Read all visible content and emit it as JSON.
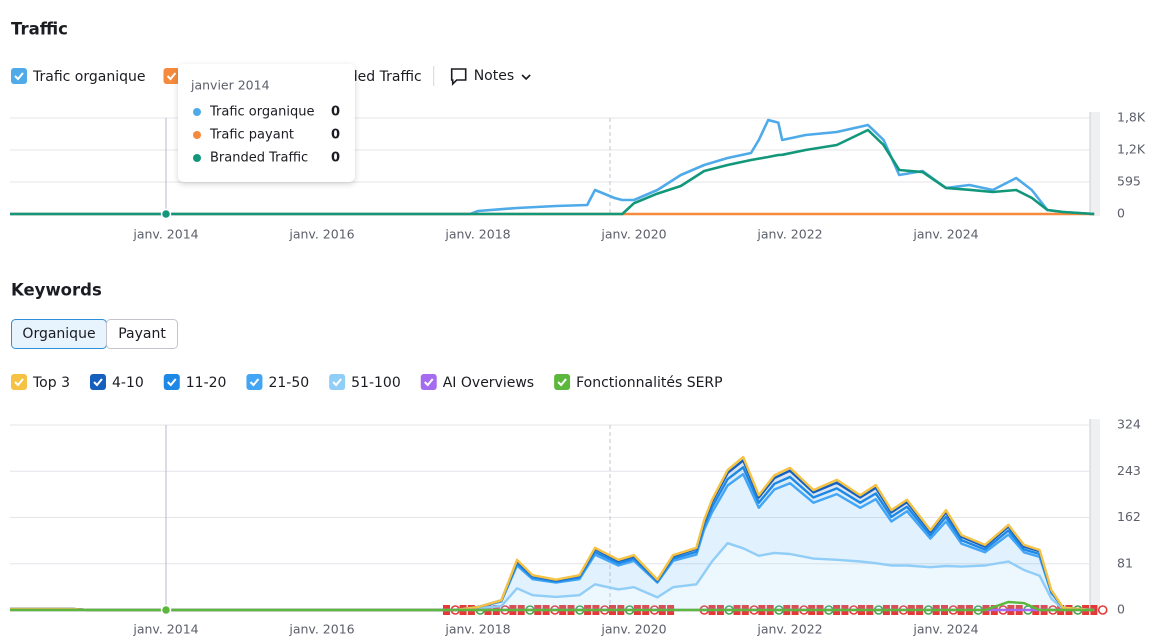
{
  "chart_data": [
    {
      "type": "line",
      "title": "Traffic",
      "x": [
        2012,
        2017.9,
        2018.0,
        2018.5,
        2019.0,
        2019.4,
        2019.5,
        2019.75,
        2019.85,
        2020.0,
        2020.3,
        2020.6,
        2020.9,
        2021.2,
        2021.5,
        2021.6,
        2021.72,
        2021.85,
        2021.9,
        2022.2,
        2022.6,
        2023.0,
        2023.2,
        2023.4,
        2023.7,
        2024.0,
        2024.3,
        2024.6,
        2024.9,
        2025.1,
        2025.3,
        2025.5,
        2025.9
      ],
      "series": [
        {
          "name": "Trafic organique",
          "color": "#4eaae8",
          "values": [
            0,
            0,
            56,
            112,
            149,
            167,
            446,
            298,
            260,
            260,
            446,
            725,
            911,
            1041,
            1134,
            1376,
            1748,
            1700,
            1376,
            1469,
            1525,
            1655,
            1376,
            725,
            800,
            484,
            539,
            446,
            670,
            446,
            74,
            37,
            0
          ]
        },
        {
          "name": "Trafic payant",
          "color": "#f58a3d",
          "values": [
            0,
            0,
            0,
            0,
            0,
            0,
            0,
            0,
            0,
            0,
            0,
            0,
            0,
            0,
            0,
            0,
            0,
            0,
            0,
            0,
            0,
            0,
            0,
            0,
            0,
            0,
            0,
            0,
            0,
            0,
            0,
            0,
            0
          ]
        },
        {
          "name": "Branded Traffic",
          "color": "#12977a",
          "values": [
            0,
            0,
            0,
            0,
            0,
            0,
            0,
            0,
            0,
            200,
            380,
            520,
            800,
            911,
            1004,
            1030,
            1060,
            1097,
            1100,
            1190,
            1283,
            1562,
            1283,
            818,
            780,
            484,
            450,
            409,
            446,
            300,
            74,
            37,
            0
          ]
        }
      ],
      "xlim": [
        2012,
        2026
      ],
      "xticks": [
        {
          "value": 2014,
          "label": "janv. 2014"
        },
        {
          "value": 2016,
          "label": "janv. 2016"
        },
        {
          "value": 2018,
          "label": "janv. 2018"
        },
        {
          "value": 2020,
          "label": "janv. 2020"
        },
        {
          "value": 2022,
          "label": "janv. 2022"
        },
        {
          "value": 2024,
          "label": "janv. 2024"
        }
      ],
      "ylim": [
        0,
        1785
      ],
      "yticks": [
        0,
        595,
        {
          "value": 1190,
          "label": "1,2K"
        },
        {
          "value": 1785,
          "label": "1,8K"
        }
      ],
      "grid": true
    },
    {
      "type": "area",
      "title": "Keywords",
      "x": [
        2012,
        2012.8,
        2013,
        2017.7,
        2018.0,
        2018.3,
        2018.5,
        2018.7,
        2019.0,
        2019.3,
        2019.5,
        2019.8,
        2020.0,
        2020.3,
        2020.5,
        2020.8,
        2020.9,
        2021.0,
        2021.2,
        2021.4,
        2021.6,
        2021.8,
        2022.0,
        2022.3,
        2022.6,
        2022.9,
        2023.1,
        2023.3,
        2023.5,
        2023.8,
        2024.0,
        2024.2,
        2024.5,
        2024.8,
        2025.0,
        2025.2,
        2025.35,
        2025.5,
        2025.9
      ],
      "series": [
        {
          "name": "Top 3",
          "color": "#f6c244",
          "stacked": true,
          "values": [
            0,
            0,
            0,
            0,
            0,
            0,
            2,
            1,
            1,
            1,
            2,
            2,
            2,
            1,
            2,
            2,
            3,
            4,
            5,
            6,
            4,
            5,
            5,
            4,
            5,
            4,
            5,
            4,
            4,
            3,
            4,
            3,
            3,
            3,
            3,
            2,
            1,
            0,
            0
          ]
        },
        {
          "name": "4-10",
          "color": "#1560bd",
          "stacked": true,
          "values": [
            0,
            0,
            0,
            0,
            0,
            1,
            4,
            3,
            2,
            3,
            5,
            4,
            4,
            2,
            4,
            5,
            7,
            9,
            11,
            12,
            9,
            10,
            11,
            9,
            10,
            9,
            10,
            8,
            8,
            6,
            8,
            6,
            5,
            7,
            5,
            5,
            2,
            0,
            0
          ]
        },
        {
          "name": "11-20",
          "color": "#1e88e5",
          "stacked": true,
          "values": [
            0,
            0,
            0,
            0,
            0,
            1,
            4,
            3,
            2,
            3,
            5,
            4,
            4,
            2,
            4,
            5,
            7,
            9,
            11,
            12,
            9,
            10,
            11,
            9,
            10,
            9,
            10,
            8,
            8,
            6,
            8,
            6,
            5,
            7,
            5,
            5,
            2,
            0,
            0
          ]
        },
        {
          "name": "21-50",
          "color": "#42a5f5",
          "stacked": true,
          "values": [
            0,
            0,
            0,
            0,
            2,
            8,
            40,
            28,
            25,
            28,
            52,
            42,
            46,
            26,
            46,
            52,
            76,
            86,
            101,
            130,
            84,
            111,
            124,
            98,
            115,
            94,
            112,
            77,
            95,
            50,
            78,
            40,
            23,
            47,
            31,
            33,
            10,
            2,
            0
          ]
        },
        {
          "name": "51-100",
          "color": "#90cdf7",
          "stacked": true,
          "values": [
            2,
            2,
            0,
            0,
            3,
            7,
            38,
            26,
            23,
            26,
            45,
            36,
            40,
            22,
            40,
            45,
            65,
            85,
            117,
            108,
            95,
            100,
            98,
            90,
            88,
            85,
            82,
            78,
            78,
            75,
            77,
            76,
            78,
            85,
            70,
            60,
            20,
            2,
            0
          ]
        },
        {
          "name": "AI Overviews",
          "color": "#a66cf0",
          "stacked": false,
          "values": [
            0,
            0,
            0,
            0,
            0,
            0,
            0,
            0,
            0,
            0,
            0,
            0,
            0,
            0,
            0,
            0,
            0,
            0,
            0,
            0,
            0,
            0,
            0,
            0,
            0,
            0,
            0,
            0,
            0,
            0,
            0,
            0,
            0,
            0,
            0,
            0,
            0,
            0,
            0
          ]
        },
        {
          "name": "Fonctionnalités SERP",
          "color": "#5cb83c",
          "stacked": false,
          "values": [
            0,
            0,
            0,
            0,
            0,
            0,
            0,
            0,
            0,
            0,
            0,
            0,
            0,
            0,
            0,
            0,
            0,
            0,
            0,
            0,
            0,
            0,
            0,
            0,
            0,
            0,
            0,
            0,
            0,
            0,
            0,
            0,
            0,
            14,
            12,
            0,
            0,
            0,
            0
          ]
        }
      ],
      "xlim": [
        2012,
        2026
      ],
      "xticks": [
        {
          "value": 2014,
          "label": "janv. 2014"
        },
        {
          "value": 2016,
          "label": "janv. 2016"
        },
        {
          "value": 2018,
          "label": "janv. 2018"
        },
        {
          "value": 2020,
          "label": "janv. 2020"
        },
        {
          "value": 2022,
          "label": "janv. 2022"
        },
        {
          "value": 2024,
          "label": "janv. 2024"
        }
      ],
      "ylim": [
        0,
        324
      ],
      "yticks": [
        0,
        81,
        162,
        243,
        324
      ],
      "grid": true
    }
  ],
  "notes": "Notes",
  "buttons": [
    "Organique",
    "Payant"
  ],
  "tooltip": {
    "title": "janvier 2014",
    "x": 2014,
    "values": [
      0,
      0,
      0
    ]
  }
}
